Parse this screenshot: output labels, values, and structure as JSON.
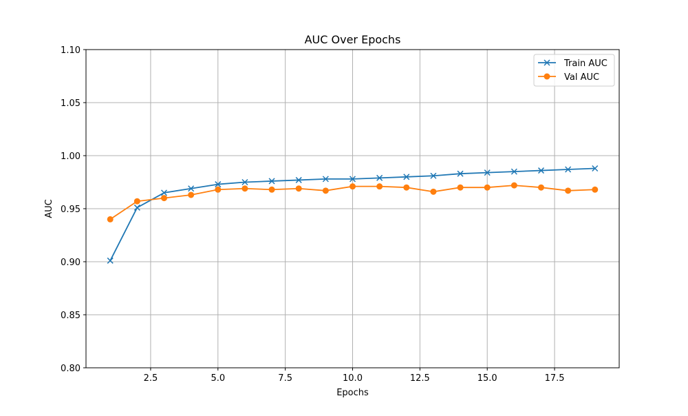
{
  "chart_data": {
    "type": "line",
    "title": "AUC Over Epochs",
    "xlabel": "Epochs",
    "ylabel": "AUC",
    "xlim": [
      0.1,
      19.9
    ],
    "ylim": [
      0.8,
      1.1
    ],
    "xticks": [
      2.5,
      5.0,
      7.5,
      10.0,
      12.5,
      15.0,
      17.5
    ],
    "xtick_labels": [
      "2.5",
      "5.0",
      "7.5",
      "10.0",
      "12.5",
      "15.0",
      "17.5"
    ],
    "yticks": [
      0.8,
      0.85,
      0.9,
      0.95,
      1.0,
      1.05,
      1.1
    ],
    "ytick_labels": [
      "0.80",
      "0.85",
      "0.90",
      "0.95",
      "1.00",
      "1.05",
      "1.10"
    ],
    "grid": true,
    "legend_position": "top-right",
    "x": [
      1,
      2,
      3,
      4,
      5,
      6,
      7,
      8,
      9,
      10,
      11,
      12,
      13,
      14,
      15,
      16,
      17,
      18,
      19
    ],
    "series": [
      {
        "name": "Train AUC",
        "color": "#1f77b4",
        "marker": "x",
        "values": [
          0.901,
          0.951,
          0.965,
          0.969,
          0.973,
          0.975,
          0.976,
          0.977,
          0.978,
          0.978,
          0.979,
          0.98,
          0.981,
          0.983,
          0.984,
          0.985,
          0.986,
          0.987,
          0.988
        ]
      },
      {
        "name": "Val AUC",
        "color": "#ff7f0e",
        "marker": "circle",
        "values": [
          0.94,
          0.957,
          0.96,
          0.963,
          0.968,
          0.969,
          0.968,
          0.969,
          0.967,
          0.971,
          0.971,
          0.97,
          0.966,
          0.97,
          0.97,
          0.972,
          0.97,
          0.967,
          0.968
        ]
      }
    ]
  }
}
